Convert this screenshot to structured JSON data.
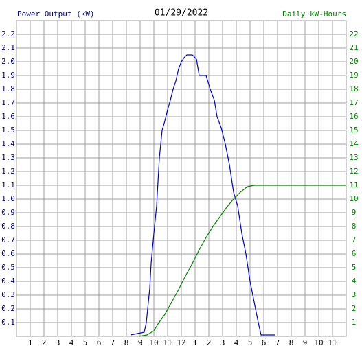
{
  "chart_data": {
    "type": "line",
    "title": "01/29/2022",
    "y_label": "Power Output (kW)",
    "y2_label": "Daily kW-Hours",
    "xlim": [
      0,
      24
    ],
    "xticks": [
      1,
      2,
      3,
      4,
      5,
      6,
      7,
      8,
      9,
      10,
      11,
      12,
      {
        "value": 13,
        "label": "1"
      },
      {
        "value": 14,
        "label": "2"
      },
      {
        "value": 15,
        "label": "3"
      },
      {
        "value": 16,
        "label": "4"
      },
      {
        "value": 17,
        "label": "5"
      },
      {
        "value": 18,
        "label": "6"
      },
      {
        "value": 19,
        "label": "7"
      },
      {
        "value": 20,
        "label": "8"
      },
      {
        "value": 21,
        "label": "9"
      },
      {
        "value": 22,
        "label": "10"
      },
      {
        "value": 23,
        "label": "11"
      }
    ],
    "ylim": [
      0,
      2.3
    ],
    "yticks": [
      0.1,
      0.2,
      0.3,
      0.4,
      0.5,
      0.6,
      0.7,
      0.8,
      0.9,
      {
        "value": 1,
        "label": "1.0"
      },
      1.1,
      1.2,
      1.3,
      1.4,
      1.5,
      1.6,
      1.7,
      1.8,
      1.9,
      {
        "value": 2,
        "label": "2.0"
      },
      2.1,
      2.2
    ],
    "y2lim": [
      0,
      23
    ],
    "y2ticks": [
      1,
      2,
      3,
      4,
      5,
      6,
      7,
      8,
      9,
      10,
      11,
      12,
      13,
      14,
      15,
      16,
      17,
      18,
      19,
      20,
      21,
      22
    ],
    "grid": true,
    "series": [
      {
        "name": "Power Output (kW)",
        "color": "#0000cc",
        "x": [
          8.3,
          8.8,
          9.3,
          9.45,
          9.55,
          9.7,
          9.8,
          10.0,
          10.2,
          10.4,
          10.6,
          10.8,
          11.0,
          11.2,
          11.4,
          11.6,
          11.8,
          12.0,
          12.2,
          12.4,
          12.8,
          13.1,
          13.3,
          13.8,
          14.1,
          14.4,
          14.6,
          14.9,
          15.2,
          15.5,
          15.8,
          16.1,
          16.4,
          16.7,
          17.0,
          17.3,
          17.6,
          17.8,
          18.8
        ],
        "values": [
          0.01,
          0.02,
          0.03,
          0.1,
          0.2,
          0.35,
          0.53,
          0.75,
          0.95,
          1.3,
          1.5,
          1.57,
          1.65,
          1.72,
          1.8,
          1.86,
          1.95,
          2.0,
          2.03,
          2.05,
          2.05,
          2.02,
          1.9,
          1.9,
          1.8,
          1.72,
          1.6,
          1.52,
          1.4,
          1.25,
          1.05,
          0.95,
          0.75,
          0.6,
          0.4,
          0.25,
          0.1,
          0.01,
          0.01
        ]
      },
      {
        "name": "Daily kW-Hours",
        "color": "#008000",
        "axis": "y2",
        "x": [
          8.9,
          9.5,
          10.0,
          10.3,
          10.8,
          11.3,
          11.8,
          12.3,
          12.8,
          13.3,
          13.8,
          14.3,
          14.8,
          15.3,
          15.8,
          16.3,
          16.8,
          17.3,
          24
        ],
        "values": [
          0,
          0.1,
          0.4,
          0.9,
          1.6,
          2.5,
          3.4,
          4.4,
          5.3,
          6.3,
          7.2,
          8.0,
          8.7,
          9.4,
          10.0,
          10.5,
          10.9,
          11.0,
          11.0
        ]
      }
    ]
  }
}
